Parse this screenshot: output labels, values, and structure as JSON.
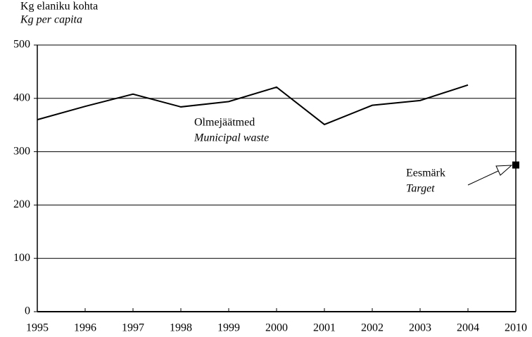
{
  "chart_data": {
    "type": "line",
    "y_label": "Kg elaniku kohta",
    "y_label_en": "Kg per capita",
    "categories": [
      "1995",
      "1996",
      "1997",
      "1998",
      "1999",
      "2000",
      "2001",
      "2002",
      "2003",
      "2004",
      "2010"
    ],
    "series": [
      {
        "name": "Olmejäätmed",
        "name_en": "Municipal waste",
        "color": "#000000",
        "values": [
          360,
          385,
          408,
          384,
          394,
          421,
          351,
          387,
          396,
          425,
          null
        ]
      },
      {
        "name": "Eesmärk",
        "name_en": "Target",
        "color": "#000000",
        "marker": "square",
        "values": [
          null,
          null,
          null,
          null,
          null,
          null,
          null,
          null,
          null,
          null,
          275
        ]
      }
    ],
    "ylim": [
      0,
      500
    ],
    "yticks": [
      0,
      100,
      200,
      300,
      400,
      500
    ],
    "grid": true
  }
}
